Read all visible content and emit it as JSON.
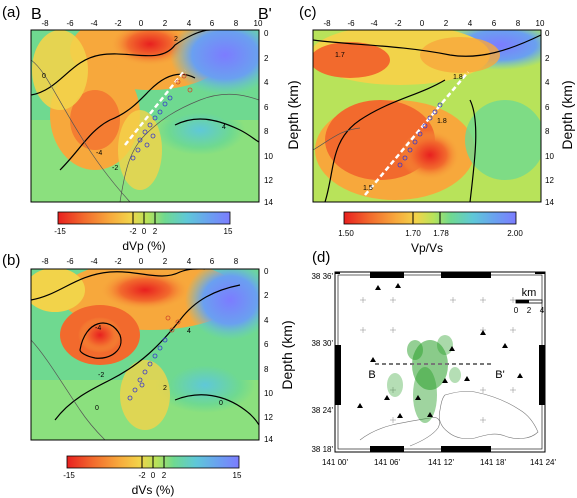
{
  "panels": {
    "a": {
      "label": "(a)",
      "endpoint_left": "B",
      "endpoint_right": "B'",
      "x_ticks": [
        "-8",
        "-6",
        "-4",
        "-2",
        "0",
        "2",
        "4",
        "6",
        "8",
        "10"
      ],
      "y_ticks": [
        "0",
        "2",
        "4",
        "6",
        "8",
        "10",
        "12",
        "14"
      ],
      "contour_values": [
        "-4",
        "0",
        "-2",
        "2",
        "4"
      ],
      "colorbar": {
        "ticks": [
          "-15",
          "-2",
          "0",
          "2",
          "15"
        ],
        "label": "dVp (%)",
        "colors": [
          "#e8201f",
          "#f26a2d",
          "#f7a83c",
          "#f2d34a",
          "#b8e35a",
          "#6fd990",
          "#5fc8d8",
          "#6aa0f0",
          "#7c7cff"
        ]
      }
    },
    "b": {
      "label": "(b)",
      "x_ticks": [
        "-8",
        "-6",
        "-4",
        "-2",
        "0",
        "2",
        "4",
        "6",
        "8"
      ],
      "y_ticks": [
        "0",
        "2",
        "4",
        "6",
        "8",
        "10",
        "12",
        "14"
      ],
      "y_label": "Depth (km)",
      "contour_values": [
        "-4",
        "-2",
        "0",
        "2",
        "4",
        "0"
      ],
      "colorbar": {
        "ticks": [
          "-15",
          "-2",
          "0",
          "2",
          "15"
        ],
        "label": "dVs (%)",
        "colors": [
          "#e8201f",
          "#f26a2d",
          "#f7a83c",
          "#f2d34a",
          "#b8e35a",
          "#6fd990",
          "#5fc8d8",
          "#6aa0f0",
          "#7c7cff"
        ]
      }
    },
    "c": {
      "label": "(c)",
      "x_ticks": [
        "-8",
        "-6",
        "-4",
        "-2",
        "0",
        "2",
        "4",
        "6",
        "8",
        "10"
      ],
      "y_ticks": [
        "0",
        "2",
        "4",
        "6",
        "8",
        "10",
        "12",
        "14"
      ],
      "y_label": "Depth (km)",
      "contour_values": [
        "1.5",
        "1.8",
        "1.8",
        "1.7"
      ],
      "colorbar": {
        "ticks": [
          "1.50",
          "1.70",
          "1.78",
          "2.00"
        ],
        "label": "Vp/Vs",
        "colors": [
          "#e8201f",
          "#f26a2d",
          "#f7a83c",
          "#f2d34a",
          "#b8e35a",
          "#6fd990",
          "#5fc8d8",
          "#6aa0f0",
          "#7c7cff"
        ]
      }
    },
    "d": {
      "label": "(d)",
      "y_ticks": [
        "38 36'",
        "38 30'",
        "38 24'",
        "38 18'"
      ],
      "x_ticks": [
        "141 00'",
        "141 06'",
        "141 12'",
        "141 18'",
        "141 24'"
      ],
      "scale_unit": "km",
      "scale_ticks": [
        "0",
        "2",
        "4"
      ],
      "endpoint_left": "B",
      "endpoint_right": "B'"
    }
  },
  "top_y_label": "Depth (km)"
}
